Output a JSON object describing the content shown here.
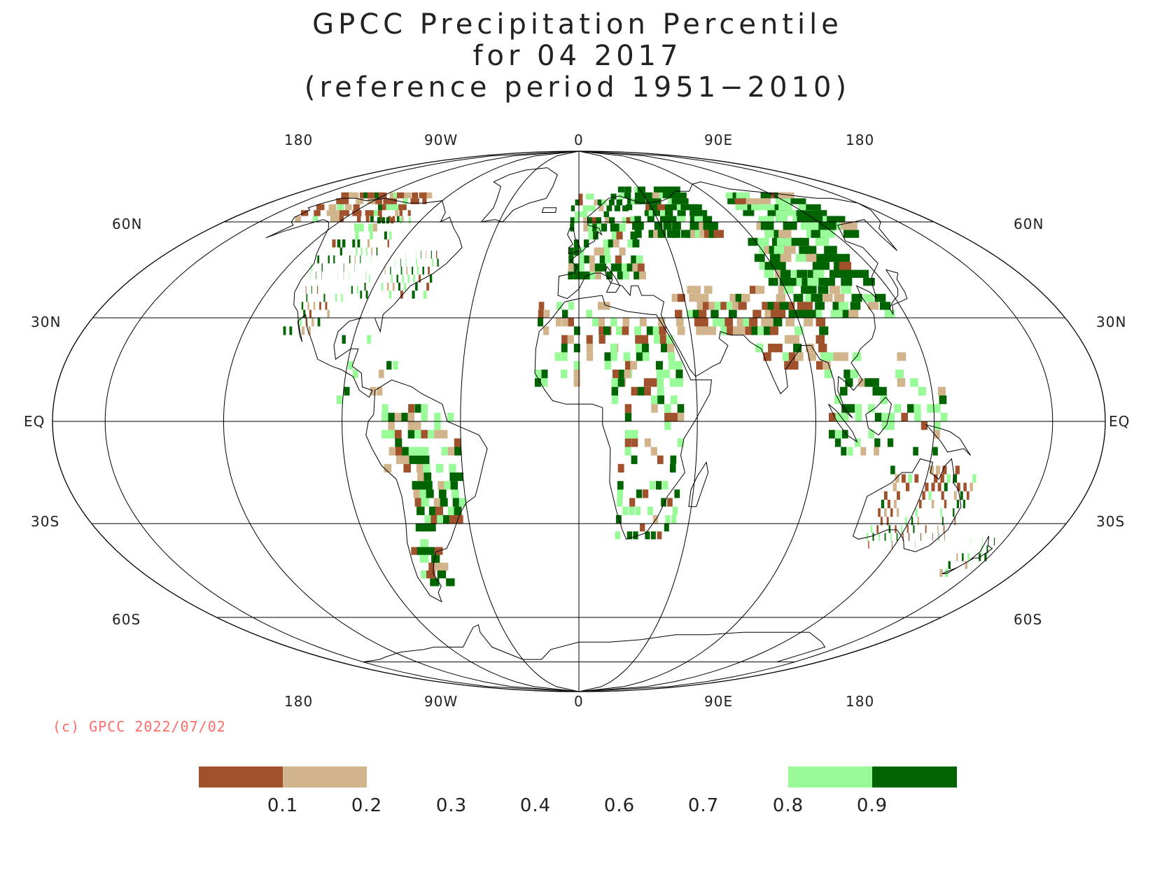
{
  "title": {
    "line1": "GPCC Precipitation Percentile",
    "line2": "for 04 2017",
    "line3": "(reference period 1951−2010)"
  },
  "copyright": "(c) GPCC 2022/07/02",
  "longitude_labels_top": [
    "180",
    "90W",
    "0",
    "90E",
    "180"
  ],
  "longitude_labels_bottom": [
    "180",
    "90W",
    "0",
    "90E",
    "180"
  ],
  "latitude_labels": [
    "60N",
    "30N",
    "EQ",
    "30S",
    "60S"
  ],
  "colorbar": {
    "colors": [
      "#a0522d",
      "#d2b48c",
      "#98fb98",
      "#006400"
    ],
    "tick_labels": [
      "0.1",
      "0.2",
      "0.3",
      "0.4",
      "0.6",
      "0.7",
      "0.8",
      "0.9"
    ]
  },
  "colors": {
    "very_dry": "#a0522d",
    "dry": "#d2b48c",
    "wet": "#98fb98",
    "very_wet": "#006400",
    "copyright_text": "#ff6b6b"
  }
}
